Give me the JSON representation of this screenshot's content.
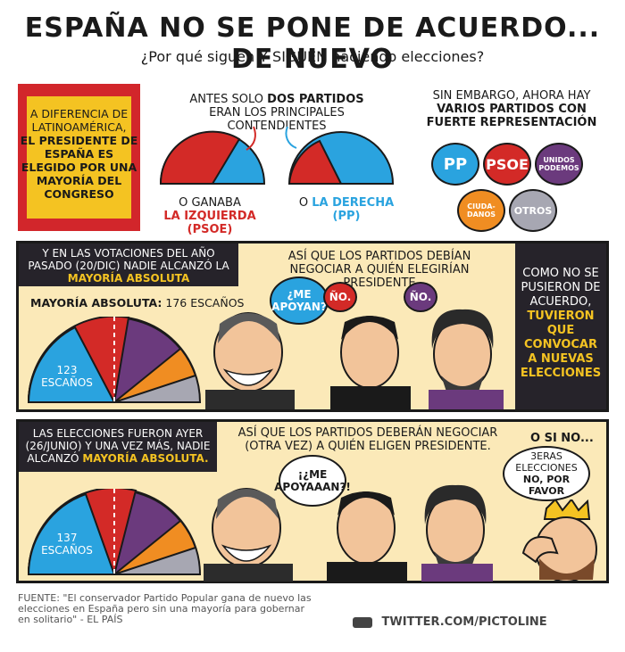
{
  "header": {
    "title": "ESPAÑA NO SE PONE DE ACUERDO... DE NUEVO",
    "subtitle": "¿Por qué siguen Y SIGUEN haciendo elecciones?"
  },
  "intro": {
    "flag_line1": "A DIFERENCIA DE LATINOAMÉRICA,",
    "flag_line2": "EL PRESIDENTE DE ESPAÑA ES ELEGIDO POR UNA MAYORÍA DEL CONGRESO",
    "before_text_a": "ANTES SOLO",
    "before_text_b": "DOS PARTIDOS",
    "before_text_c": "ERAN LOS PRINCIPALES CONTENDIENTES",
    "left_caption_a": "O GANABA",
    "left_caption_b": "LA IZQUIERDA (PSOE)",
    "right_caption_a": "O",
    "right_caption_b": "LA DERECHA (PP)",
    "now_text_a": "SIN EMBARGO, AHORA HAY",
    "now_text_b": "VARIOS PARTIDOS CON FUERTE REPRESENTACIÓN",
    "parties": [
      "PP",
      "PSOE",
      "UNIDOS PODEMOS",
      "CIUDA-DANOS",
      "OTROS"
    ]
  },
  "panel1": {
    "box_a": "Y EN LAS VOTACIONES DEL AÑO PASADO (20/DIC) NADIE ALCANZÓ LA",
    "box_b": "MAYORÍA ABSOLUTA",
    "negotiate": "ASÍ QUE LOS PARTIDOS DEBÍAN NEGOCIAR A QUIÉN ELEGIRÍAN PRESIDENTE",
    "majority_a": "MAYORÍA ABSOLUTA:",
    "majority_b": "176 ESCAÑOS",
    "seats": "123 ESCAÑOS",
    "bubble_me": "¿ME APOYAN?",
    "bubble_no1": "ÑO.",
    "bubble_no2": "ÑO.",
    "side_a": "COMO NO SE PUSIERON DE ACUERDO,",
    "side_b": "TUVIERON QUE CONVOCAR A NUEVAS ELECCIONES"
  },
  "panel2": {
    "box_a": "LAS ELECCIONES FUERON AYER (26/JUNIO) Y UNA VEZ MÁS, NADIE ALCANZÓ",
    "box_b": "MAYORÍA ABSOLUTA.",
    "negotiate": "ASÍ QUE LOS PARTIDOS DEBERÁN NEGOCIAR (OTRA VEZ) A QUIÉN ELIGEN PRESIDENTE.",
    "seats": "137 ESCAÑOS",
    "bubble_me": "¡¿ME APOYAAAN?!",
    "o_si_no": "O SI NO...",
    "third_a": "3ERAS ELECCIONES",
    "third_b": "NO, POR FAVOR"
  },
  "footer": {
    "source": "FUENTE: \"El conservador Partido Popular gana de nuevo las elecciones en España pero sin una mayoría para gobernar en solitario\" - EL PAÍS",
    "twitter": "TWITTER.COM/PICTOLINE"
  },
  "colors": {
    "pp": "#2aa3df",
    "psoe": "#d32a27",
    "podemos": "#6b3a7d",
    "ciudadanos": "#f08d22",
    "otros": "#a7a7b2",
    "flag_red": "#d2262b",
    "flag_yellow": "#f4c322",
    "panel_bg": "#fbe9b8"
  }
}
